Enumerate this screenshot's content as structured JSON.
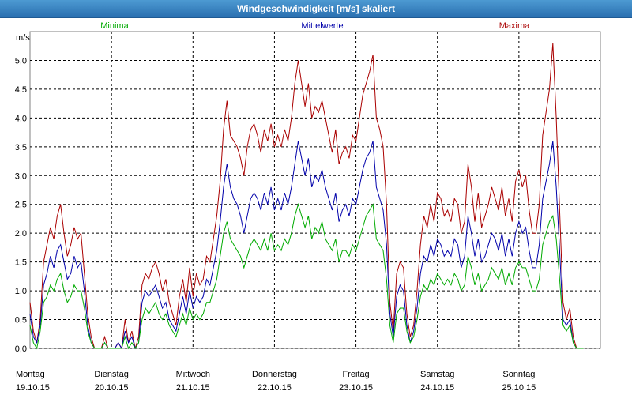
{
  "window": {
    "title": "Windgeschwindigkeit [m/s] skaliert"
  },
  "colors": {
    "minima": "#00aa00",
    "mittel": "#0000aa",
    "maxima": "#aa0000",
    "grid": "#000000"
  },
  "chart_data": {
    "type": "line",
    "title": "Windgeschwindigkeit [m/s] skaliert",
    "ylabel": "m/s",
    "ylim": [
      0,
      5.5
    ],
    "yticks": [
      "0,0",
      "0,5",
      "1,0",
      "1,5",
      "2,0",
      "2,5",
      "3,0",
      "3,5",
      "4,0",
      "4,5",
      "5,0"
    ],
    "xlim": [
      0,
      7
    ],
    "x_step": 0.0416667,
    "days": [
      {
        "weekday": "Montag",
        "date": "19.10.15"
      },
      {
        "weekday": "Dienstag",
        "date": "20.10.15"
      },
      {
        "weekday": "Mittwoch",
        "date": "21.10.15"
      },
      {
        "weekday": "Donnerstag",
        "date": "22.10.15"
      },
      {
        "weekday": "Freitag",
        "date": "23.10.15"
      },
      {
        "weekday": "Samstag",
        "date": "24.10.15"
      },
      {
        "weekday": "Sonntag",
        "date": "25.10.15"
      }
    ],
    "legend": [
      "Minima",
      "Mittelwerte",
      "Maxima"
    ],
    "grid": true,
    "series": [
      {
        "name": "Maxima",
        "color": "#aa0000",
        "values": [
          0.8,
          0.3,
          0.1,
          0.5,
          1.5,
          1.8,
          2.1,
          1.9,
          2.3,
          2.5,
          2.0,
          1.6,
          1.8,
          2.1,
          1.9,
          2.0,
          1.3,
          0.6,
          0.2,
          0.0,
          0.0,
          0.0,
          0.2,
          0.0,
          0.0,
          0.0,
          0.1,
          0.0,
          0.5,
          0.1,
          0.3,
          0.0,
          0.2,
          1.1,
          1.3,
          1.2,
          1.4,
          1.5,
          1.3,
          1.0,
          1.2,
          0.8,
          0.6,
          0.4,
          0.9,
          1.2,
          0.8,
          1.4,
          0.9,
          1.3,
          1.1,
          1.2,
          1.6,
          1.5,
          1.9,
          2.3,
          2.9,
          3.8,
          4.3,
          3.7,
          3.6,
          3.5,
          3.3,
          3.0,
          3.5,
          3.8,
          3.9,
          3.7,
          3.4,
          3.8,
          3.6,
          3.9,
          3.5,
          3.7,
          3.5,
          3.8,
          3.6,
          4.0,
          4.6,
          5.0,
          4.6,
          4.2,
          4.6,
          4.0,
          4.2,
          4.1,
          4.3,
          4.0,
          3.7,
          3.4,
          3.8,
          3.2,
          3.4,
          3.5,
          3.3,
          3.7,
          3.6,
          4.0,
          4.4,
          4.6,
          4.8,
          5.1,
          4.0,
          3.8,
          3.5,
          2.5,
          0.8,
          0.3,
          1.3,
          1.5,
          1.4,
          0.6,
          0.2,
          0.4,
          1.0,
          1.8,
          2.3,
          2.1,
          2.5,
          2.2,
          2.7,
          2.6,
          2.3,
          2.4,
          2.2,
          2.6,
          2.5,
          2.0,
          2.2,
          3.2,
          2.8,
          2.2,
          2.7,
          2.1,
          2.3,
          2.5,
          2.8,
          2.6,
          2.4,
          2.8,
          2.3,
          2.6,
          2.2,
          2.9,
          3.1,
          2.8,
          3.0,
          2.4,
          2.0,
          2.0,
          2.5,
          3.7,
          4.1,
          4.5,
          5.3,
          4.0,
          2.4,
          0.8,
          0.5,
          0.7,
          0.2,
          0.0,
          0.0,
          0.0
        ]
      },
      {
        "name": "Mittelwerte",
        "color": "#0000aa",
        "values": [
          0.6,
          0.2,
          0.1,
          0.4,
          1.1,
          1.3,
          1.6,
          1.4,
          1.7,
          1.8,
          1.5,
          1.2,
          1.3,
          1.6,
          1.4,
          1.5,
          1.0,
          0.4,
          0.1,
          0.0,
          0.0,
          0.0,
          0.1,
          0.0,
          0.0,
          0.0,
          0.1,
          0.0,
          0.3,
          0.1,
          0.2,
          0.0,
          0.1,
          0.8,
          1.0,
          0.9,
          1.0,
          1.1,
          0.9,
          0.7,
          0.8,
          0.5,
          0.4,
          0.3,
          0.6,
          0.9,
          0.6,
          1.0,
          0.7,
          0.9,
          0.8,
          0.9,
          1.2,
          1.1,
          1.4,
          1.7,
          2.2,
          2.8,
          3.2,
          2.8,
          2.6,
          2.5,
          2.3,
          2.0,
          2.3,
          2.6,
          2.7,
          2.6,
          2.4,
          2.7,
          2.5,
          2.8,
          2.4,
          2.6,
          2.4,
          2.7,
          2.5,
          2.8,
          3.2,
          3.6,
          3.3,
          3.0,
          3.3,
          2.8,
          3.0,
          2.9,
          3.1,
          2.8,
          2.6,
          2.4,
          2.7,
          2.2,
          2.4,
          2.5,
          2.3,
          2.6,
          2.5,
          2.8,
          3.1,
          3.3,
          3.4,
          3.6,
          2.8,
          2.6,
          2.4,
          1.8,
          0.6,
          0.2,
          0.9,
          1.1,
          1.0,
          0.4,
          0.1,
          0.3,
          0.7,
          1.3,
          1.6,
          1.5,
          1.8,
          1.6,
          1.9,
          1.8,
          1.6,
          1.7,
          1.6,
          1.9,
          1.8,
          1.4,
          1.6,
          2.3,
          2.0,
          1.6,
          1.9,
          1.5,
          1.6,
          1.8,
          2.0,
          1.9,
          1.7,
          2.0,
          1.6,
          1.9,
          1.6,
          2.0,
          2.2,
          2.0,
          2.1,
          1.7,
          1.4,
          1.4,
          1.8,
          2.6,
          2.9,
          3.2,
          3.6,
          2.8,
          1.7,
          0.5,
          0.4,
          0.5,
          0.1,
          0.0,
          0.0,
          0.0
        ]
      },
      {
        "name": "Minima",
        "color": "#00aa00",
        "values": [
          0.4,
          0.1,
          0.0,
          0.3,
          0.8,
          0.9,
          1.1,
          1.0,
          1.2,
          1.3,
          1.0,
          0.8,
          0.9,
          1.1,
          1.0,
          1.0,
          0.7,
          0.3,
          0.1,
          0.0,
          0.0,
          0.0,
          0.1,
          0.0,
          0.0,
          0.0,
          0.0,
          0.0,
          0.2,
          0.0,
          0.1,
          0.0,
          0.1,
          0.5,
          0.7,
          0.6,
          0.7,
          0.8,
          0.6,
          0.5,
          0.6,
          0.4,
          0.3,
          0.2,
          0.4,
          0.6,
          0.4,
          0.7,
          0.5,
          0.6,
          0.5,
          0.6,
          0.8,
          0.8,
          1.0,
          1.2,
          1.6,
          2.0,
          2.2,
          1.9,
          1.8,
          1.7,
          1.6,
          1.4,
          1.6,
          1.8,
          1.9,
          1.8,
          1.7,
          1.9,
          1.7,
          2.0,
          1.7,
          1.8,
          1.7,
          1.9,
          1.8,
          2.0,
          2.3,
          2.5,
          2.3,
          2.1,
          2.3,
          1.9,
          2.1,
          2.0,
          2.2,
          1.9,
          1.8,
          1.7,
          1.9,
          1.5,
          1.7,
          1.7,
          1.6,
          1.8,
          1.7,
          1.9,
          2.1,
          2.3,
          2.4,
          2.5,
          1.9,
          1.8,
          1.7,
          1.2,
          0.4,
          0.1,
          0.6,
          0.7,
          0.7,
          0.3,
          0.1,
          0.2,
          0.5,
          0.9,
          1.1,
          1.0,
          1.2,
          1.1,
          1.3,
          1.2,
          1.1,
          1.2,
          1.1,
          1.3,
          1.2,
          1.0,
          1.1,
          1.6,
          1.4,
          1.1,
          1.3,
          1.0,
          1.1,
          1.2,
          1.4,
          1.3,
          1.2,
          1.4,
          1.1,
          1.3,
          1.1,
          1.4,
          1.5,
          1.4,
          1.4,
          1.2,
          1.0,
          1.0,
          1.2,
          1.8,
          2.0,
          2.2,
          2.3,
          1.9,
          1.2,
          0.4,
          0.3,
          0.4,
          0.1,
          0.0,
          0.0,
          0.0
        ]
      }
    ]
  }
}
